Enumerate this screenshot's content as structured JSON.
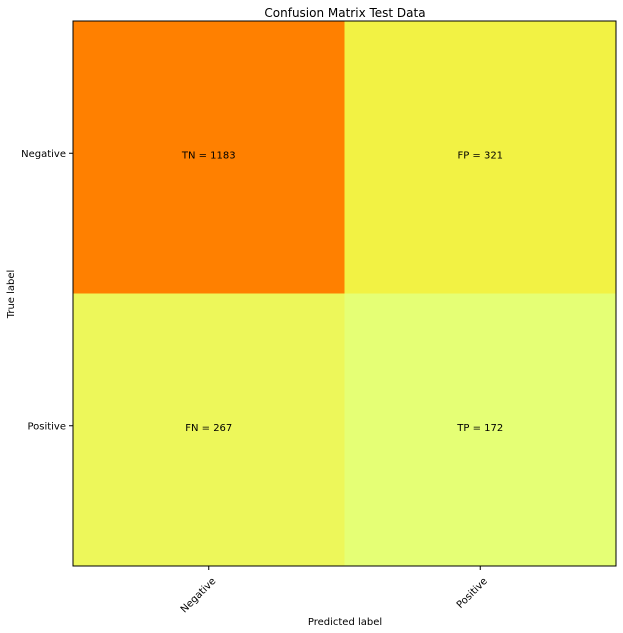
{
  "chart_data": {
    "type": "heatmap",
    "title": "Confusion Matrix Test Data",
    "xlabel": "Predicted label",
    "ylabel": "True label",
    "x_categories": [
      "Negative",
      "Positive"
    ],
    "y_categories": [
      "Negative",
      "Positive"
    ],
    "cells": [
      {
        "row": 0,
        "col": 0,
        "label": "TN = 1183",
        "value": 1183,
        "color": "#ff8000"
      },
      {
        "row": 0,
        "col": 1,
        "label": "FP = 321",
        "value": 321,
        "color": "#f2f244"
      },
      {
        "row": 1,
        "col": 0,
        "label": "FN = 267",
        "value": 267,
        "color": "#edf75a"
      },
      {
        "row": 1,
        "col": 1,
        "label": "TP = 172",
        "value": 172,
        "color": "#e5ff75"
      }
    ],
    "colormap": "Wistia"
  }
}
